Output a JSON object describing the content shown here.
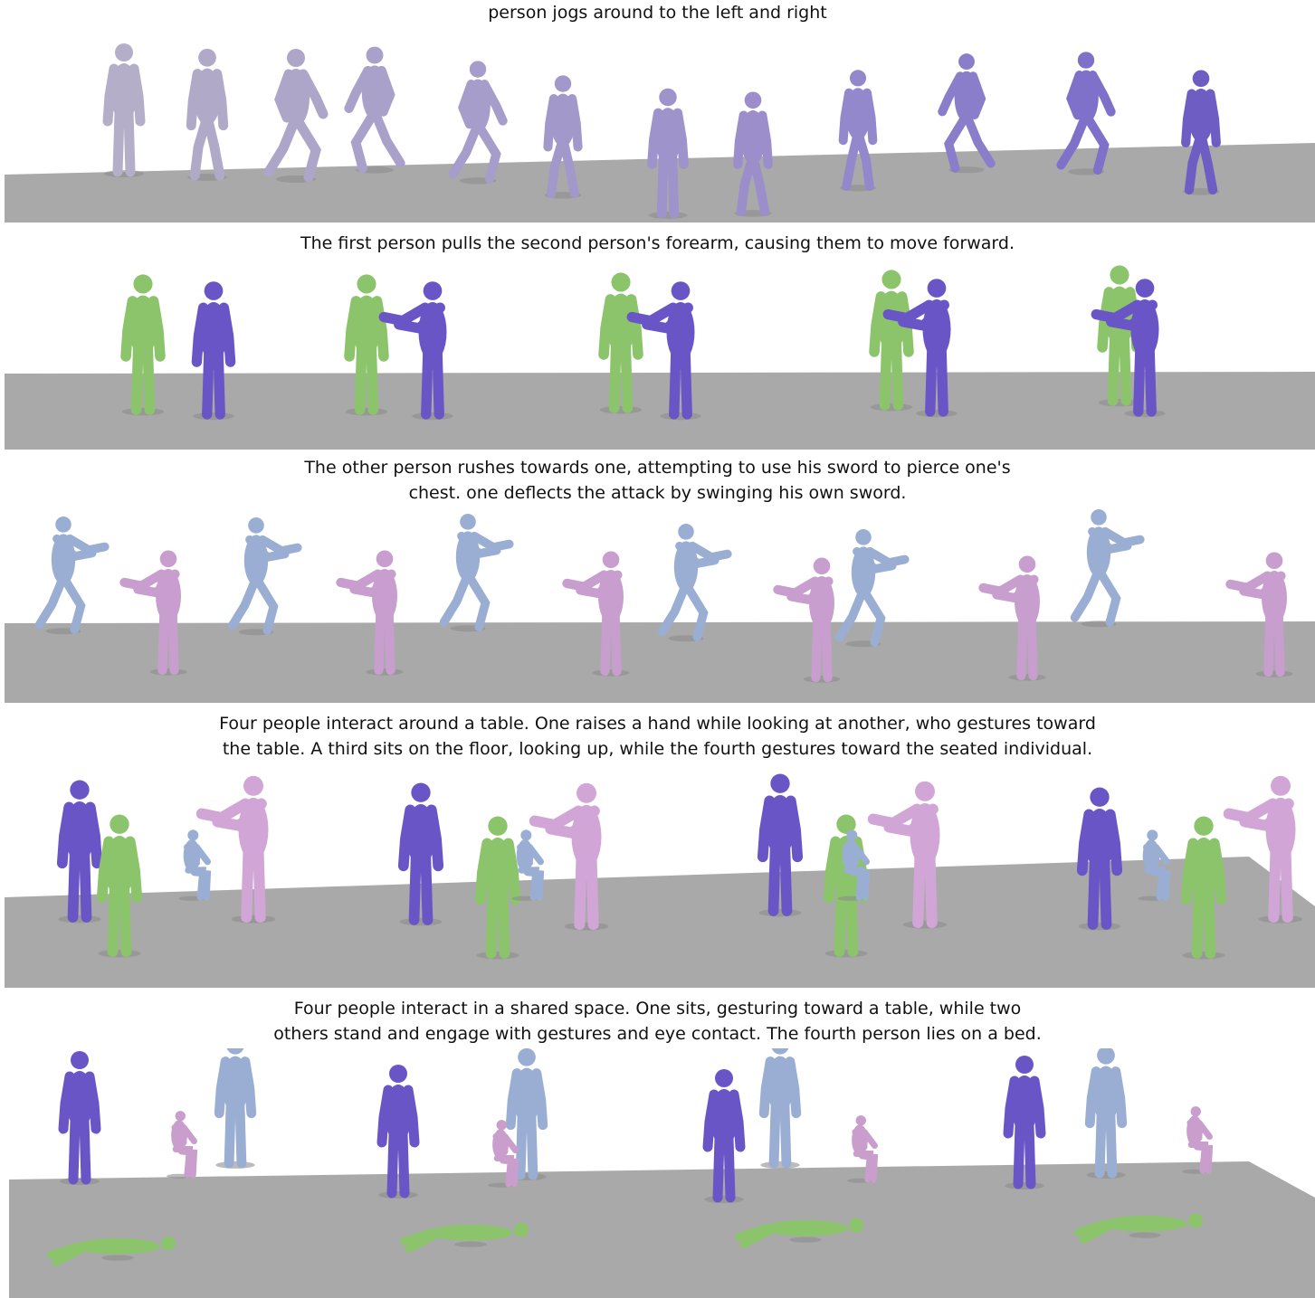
{
  "figure": {
    "panels": [
      {
        "caption_lines": [
          "person jogs around to the left and right"
        ],
        "figure_colors": [
          "#b4aec8",
          "#b0aac8",
          "#ada6c8",
          "#a9a1c9",
          "#a69dca",
          "#a398ca",
          "#9f93cb",
          "#9b8ecb",
          "#9388cc",
          "#8a7ecb",
          "#7f71c9",
          "#6e5dc3"
        ],
        "figure_poses": [
          "stand",
          "walk",
          "run",
          "run",
          "run",
          "walk",
          "stand",
          "walk",
          "walk",
          "run",
          "run",
          "walk"
        ]
      },
      {
        "caption_lines": [
          "The first person pulls the second person's forearm, causing them to move forward."
        ],
        "figure_colors": [
          "#8cc46c",
          "#6a55c6"
        ],
        "figure_poses": [
          "stand",
          "reach"
        ]
      },
      {
        "caption_lines": [
          "The other person rushes towards one, attempting to use his sword to pierce one's",
          "chest. one deflects the attack by swinging his own sword."
        ],
        "figure_colors": [
          "#9aaed4",
          "#c89ecf"
        ],
        "figure_poses": [
          "lunge",
          "reach"
        ]
      },
      {
        "caption_lines": [
          "Four people interact around a table. One raises a hand while looking at another, who gestures toward",
          "the table. A third sits on the floor, looking up, while the fourth gestures toward the seated individual."
        ],
        "figure_colors": [
          "#6a55c6",
          "#8cc46c",
          "#9aaed4",
          "#d1a6d6"
        ],
        "figure_poses": [
          "stand",
          "stand",
          "sit",
          "reach"
        ]
      },
      {
        "caption_lines": [
          "Four people interact in a shared space. One sits, gesturing toward a table, while two",
          "others stand and engage with gestures and eye contact. The fourth person lies on a bed."
        ],
        "figure_colors": [
          "#6a55c6",
          "#9aaed4",
          "#c99ecd",
          "#8cc46c"
        ],
        "figure_poses": [
          "stand",
          "stand",
          "sit",
          "lie"
        ]
      }
    ]
  }
}
